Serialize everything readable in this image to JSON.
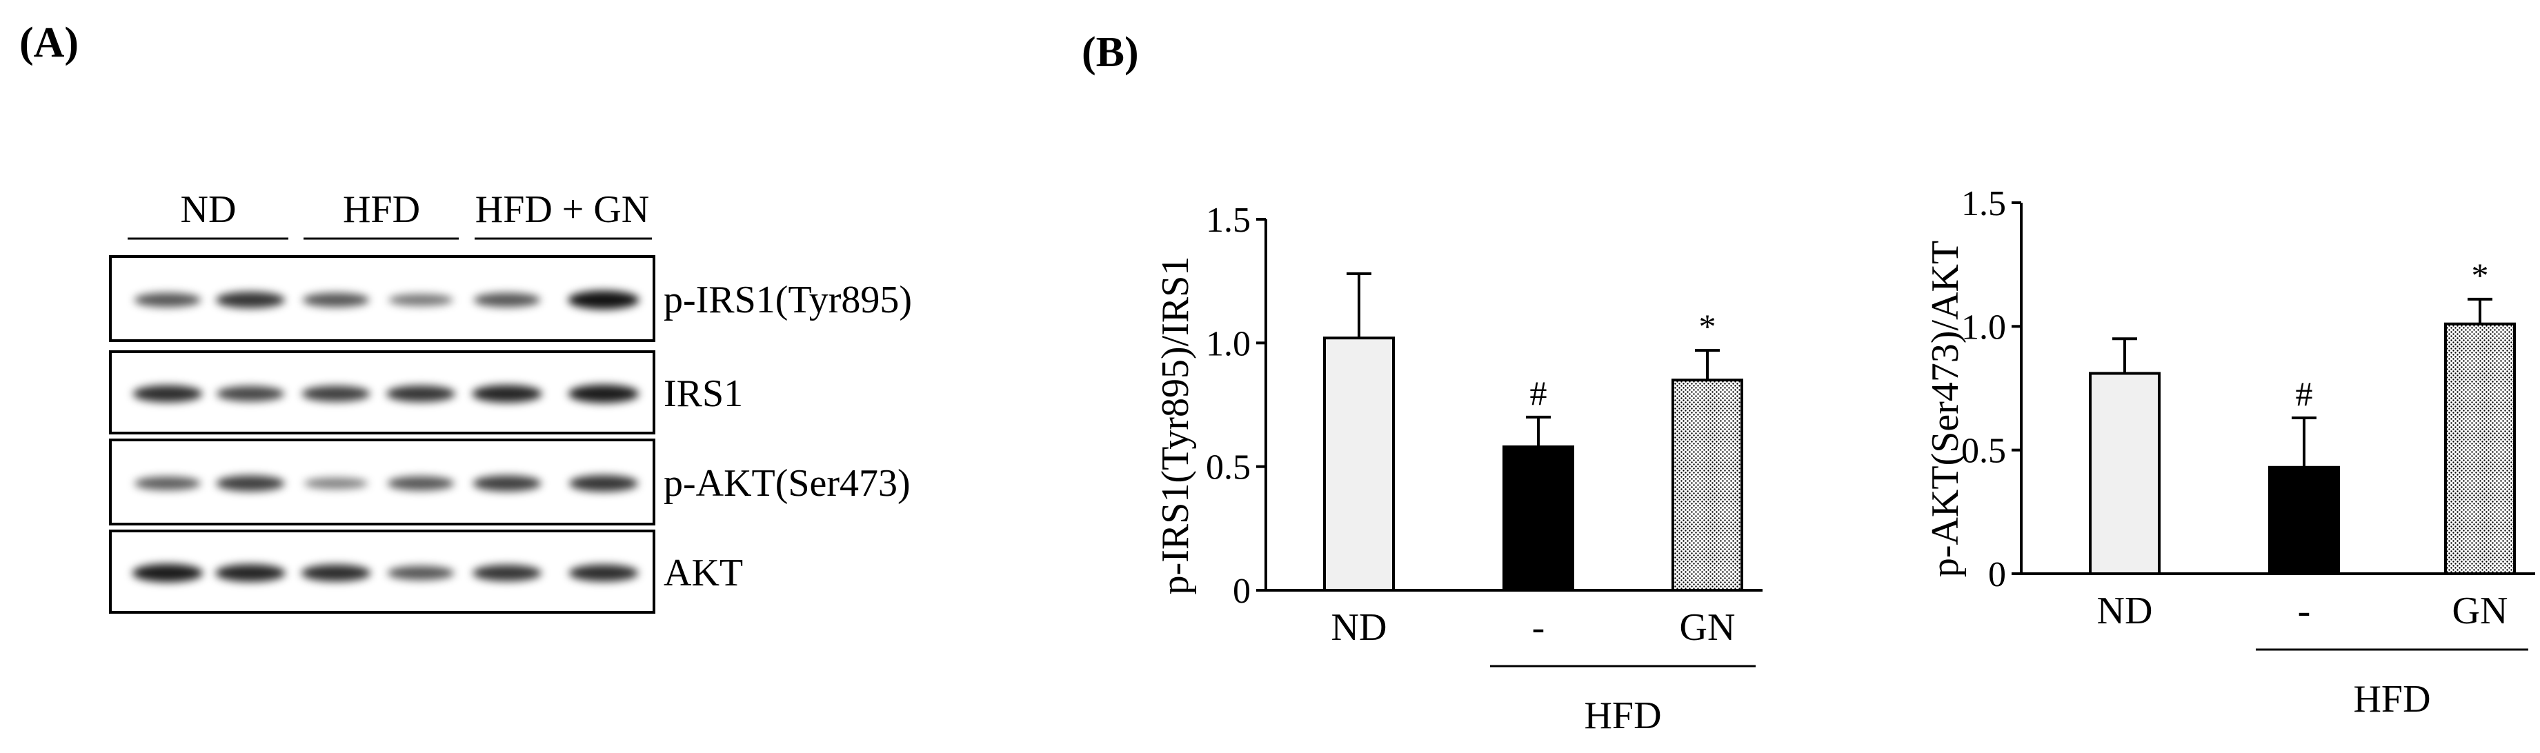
{
  "panel_labels": {
    "a": "(A)",
    "b": "(B)"
  },
  "blot": {
    "groups": [
      "ND",
      "HFD",
      "HFD + GN"
    ],
    "rows": [
      {
        "label": "p-IRS1(Tyr895)",
        "intensities": [
          0.55,
          0.75,
          0.55,
          0.35,
          0.55,
          0.95
        ]
      },
      {
        "label": "IRS1",
        "intensities": [
          0.8,
          0.65,
          0.7,
          0.75,
          0.85,
          0.9
        ]
      },
      {
        "label": "p-AKT(Ser473)",
        "intensities": [
          0.5,
          0.7,
          0.3,
          0.55,
          0.7,
          0.75
        ]
      },
      {
        "label": "AKT",
        "intensities": [
          0.9,
          0.85,
          0.8,
          0.55,
          0.75,
          0.8
        ]
      }
    ]
  },
  "colors": {
    "nd_bar": "#f0f0f0",
    "hfd_bar": "#000000",
    "gn_bar": "#cfcfcf",
    "ink": "#000000"
  },
  "chart_data": [
    {
      "type": "bar",
      "ylabel": "p-IRS1(Tyr895)/IRS1",
      "xlabel": "",
      "categories": [
        "ND",
        "-",
        "GN"
      ],
      "values": [
        1.02,
        0.58,
        0.85
      ],
      "errors": [
        0.26,
        0.12,
        0.12
      ],
      "annotations": [
        "",
        "#",
        "*"
      ],
      "group_label": "HFD",
      "yticks": [
        "0",
        "0.5",
        "1.0",
        "1.5"
      ],
      "ylim": [
        0,
        1.5
      ]
    },
    {
      "type": "bar",
      "ylabel": "p-AKT(Ser473)/AKT",
      "xlabel": "",
      "categories": [
        "ND",
        "-",
        "GN"
      ],
      "values": [
        0.81,
        0.43,
        1.01
      ],
      "errors": [
        0.14,
        0.2,
        0.1
      ],
      "annotations": [
        "",
        "#",
        "*"
      ],
      "group_label": "HFD",
      "yticks": [
        "0",
        "0.5",
        "1.0",
        "1.5"
      ],
      "ylim": [
        0,
        1.5
      ]
    }
  ]
}
